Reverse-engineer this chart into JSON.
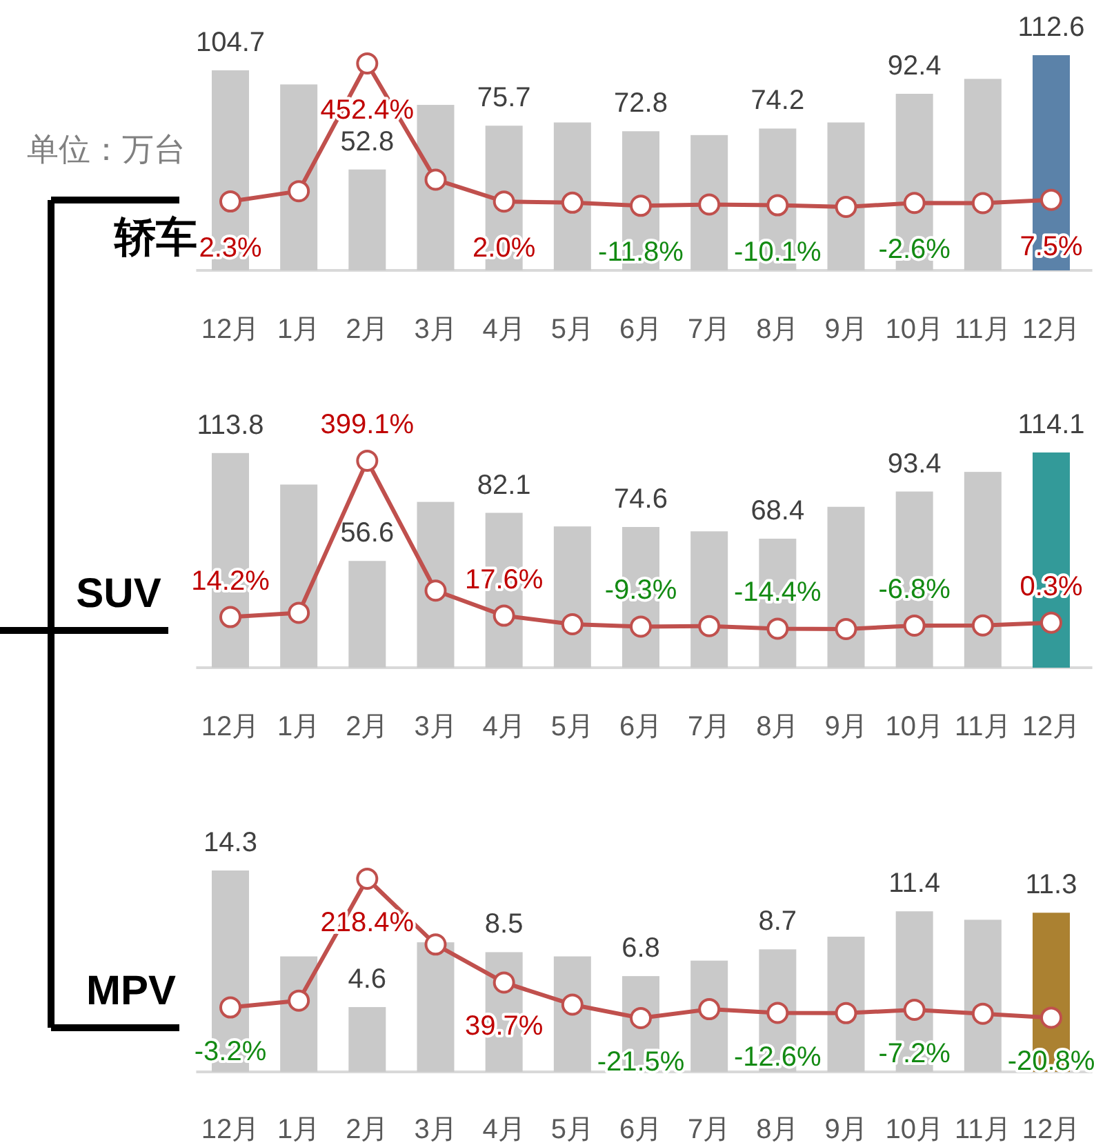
{
  "chart_data": [
    {
      "type": "bar",
      "title": "轿车",
      "ylabel": "单位：万台",
      "categories": [
        "12月",
        "1月",
        "2月",
        "3月",
        "4月",
        "5月",
        "6月",
        "7月",
        "8月",
        "9月",
        "10月",
        "11月",
        "12月"
      ],
      "series": [
        {
          "values": [
            104.7,
            97.3,
            52.8,
            86.6,
            75.7,
            77.4,
            72.8,
            70.8,
            74.2,
            77.4,
            92.4,
            100.2,
            112.6
          ],
          "colors": [
            "#c9c9c9",
            "#c9c9c9",
            "#c9c9c9",
            "#c9c9c9",
            "#c9c9c9",
            "#c9c9c9",
            "#c9c9c9",
            "#c9c9c9",
            "#c9c9c9",
            "#c9c9c9",
            "#c9c9c9",
            "#c9c9c9",
            "#5b82a9"
          ],
          "value_labels": [
            "104.7",
            null,
            "52.8",
            null,
            "75.7",
            null,
            "72.8",
            null,
            "74.2",
            null,
            "92.4",
            null,
            "112.6"
          ]
        },
        {
          "type": "line",
          "axis": "y2",
          "color": "#c0504d",
          "marker": "circle",
          "values": [
            2.3,
            35.9,
            452.4,
            73.4,
            2.0,
            -1.7,
            -11.8,
            -7.6,
            -10.1,
            -15.5,
            -2.6,
            -3.0,
            7.5
          ],
          "value_labels": [
            "2.3%",
            null,
            "452.4%",
            null,
            "2.0%",
            null,
            "-11.8%",
            null,
            "-10.1%",
            null,
            "-2.6%",
            null,
            "7.5%"
          ]
        }
      ]
    },
    {
      "type": "bar",
      "title": "SUV",
      "categories": [
        "12月",
        "1月",
        "2月",
        "3月",
        "4月",
        "5月",
        "6月",
        "7月",
        "8月",
        "9月",
        "10月",
        "11月",
        "12月"
      ],
      "series": [
        {
          "values": [
            113.8,
            97.1,
            56.6,
            87.9,
            82.1,
            74.9,
            74.6,
            72.3,
            68.4,
            85.3,
            93.4,
            103.8,
            114.1
          ],
          "colors": [
            "#c9c9c9",
            "#c9c9c9",
            "#c9c9c9",
            "#c9c9c9",
            "#c9c9c9",
            "#c9c9c9",
            "#c9c9c9",
            "#c9c9c9",
            "#c9c9c9",
            "#c9c9c9",
            "#c9c9c9",
            "#c9c9c9",
            "#339a99"
          ],
          "value_labels": [
            "113.8",
            null,
            "56.6",
            null,
            "82.1",
            null,
            "74.6",
            null,
            "68.4",
            null,
            "93.4",
            null,
            "114.1"
          ]
        },
        {
          "type": "line",
          "axis": "y2",
          "color": "#c0504d",
          "marker": "circle",
          "values": [
            14.2,
            24.6,
            399.1,
            79.3,
            17.6,
            -3.6,
            -9.3,
            -8.0,
            -14.4,
            -15.4,
            -6.8,
            -6.5,
            0.3
          ],
          "value_labels": [
            "14.2%",
            null,
            "399.1%",
            null,
            "17.6%",
            null,
            "-9.3%",
            null,
            "-14.4%",
            null,
            "-6.8%",
            null,
            "0.3%"
          ]
        }
      ]
    },
    {
      "type": "bar",
      "title": "MPV",
      "categories": [
        "12月",
        "1月",
        "2月",
        "3月",
        "4月",
        "5月",
        "6月",
        "7月",
        "8月",
        "9月",
        "10月",
        "11月",
        "12月"
      ],
      "series": [
        {
          "values": [
            14.3,
            8.2,
            4.6,
            9.2,
            8.5,
            8.2,
            6.8,
            7.9,
            8.7,
            9.6,
            11.4,
            10.8,
            11.3
          ],
          "colors": [
            "#c9c9c9",
            "#c9c9c9",
            "#c9c9c9",
            "#c9c9c9",
            "#c9c9c9",
            "#c9c9c9",
            "#c9c9c9",
            "#c9c9c9",
            "#c9c9c9",
            "#c9c9c9",
            "#c9c9c9",
            "#c9c9c9",
            "#ab8131"
          ],
          "value_labels": [
            "14.3",
            null,
            "4.6",
            null,
            "8.5",
            null,
            "6.8",
            null,
            "8.7",
            null,
            "11.4",
            null,
            "11.3"
          ]
        },
        {
          "type": "line",
          "axis": "y2",
          "color": "#c0504d",
          "marker": "circle",
          "values": [
            -3.2,
            8.6,
            218.4,
            105.2,
            39.7,
            1.7,
            -21.5,
            -6.2,
            -12.6,
            -13.0,
            -7.2,
            -14.0,
            -20.8
          ],
          "value_labels": [
            "-3.2%",
            null,
            "218.4%",
            null,
            "39.7%",
            null,
            "-21.5%",
            null,
            "-12.6%",
            null,
            "-7.2%",
            null,
            "-20.8%"
          ]
        }
      ]
    }
  ]
}
